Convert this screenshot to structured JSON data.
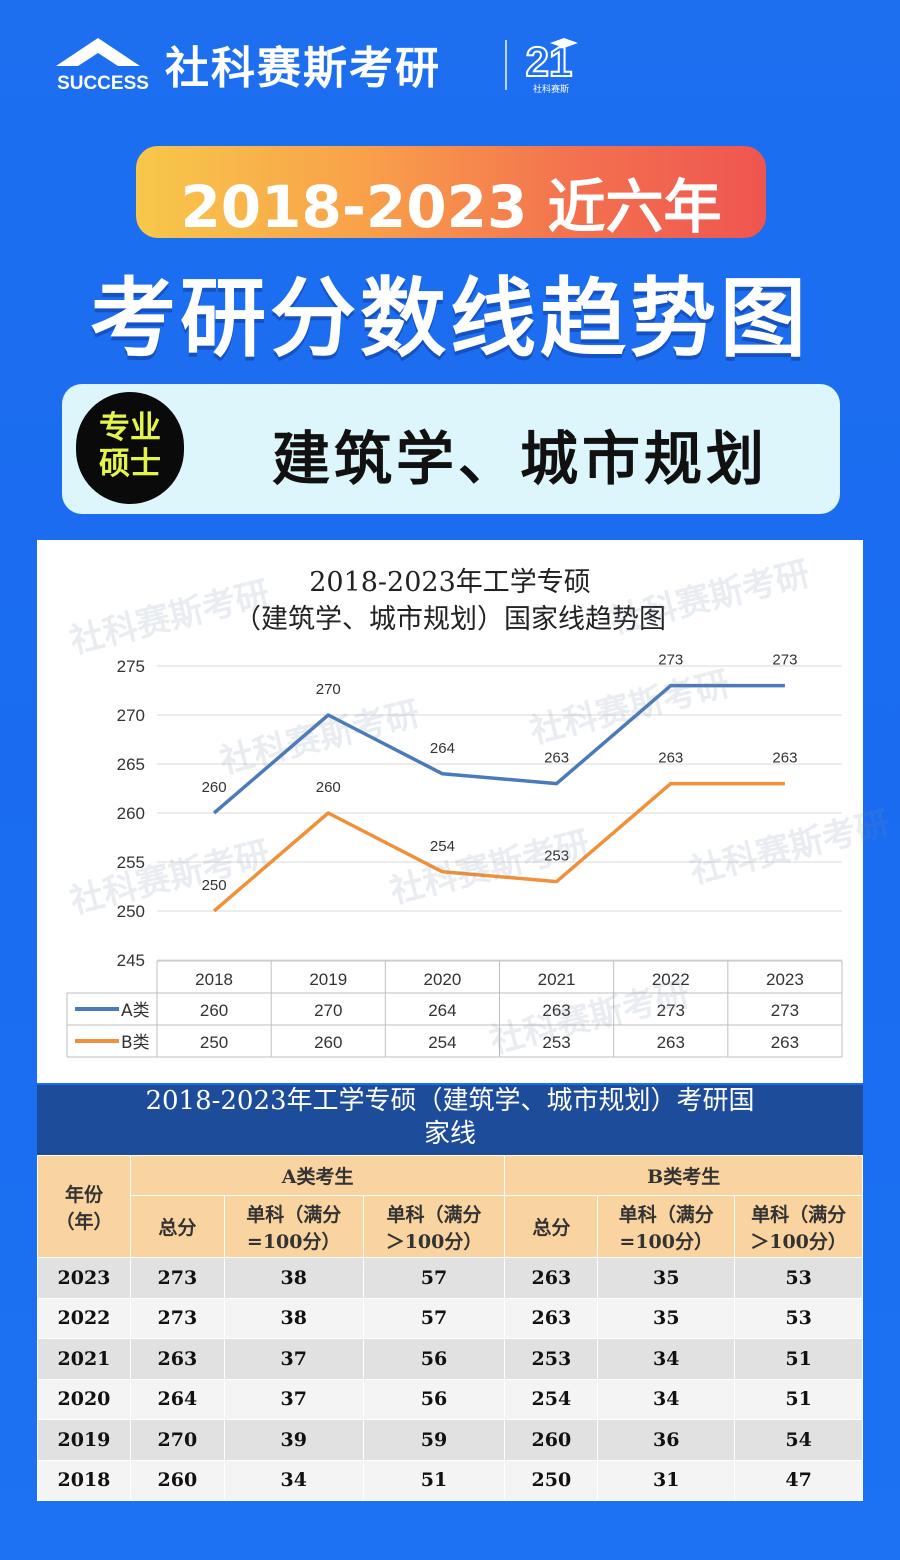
{
  "brand": {
    "logo_text": "SUCCESS",
    "name": "社科赛斯考研",
    "badge_number": "21",
    "badge_caption": "社科赛斯"
  },
  "banner": {
    "years": "2018-2023 近六年",
    "headline": "考研分数线趋势图",
    "tag_line1": "专业",
    "tag_line2": "硕士",
    "major": "建筑学、城市规划"
  },
  "watermark": "社科赛斯考研",
  "chart_data": {
    "type": "line",
    "title_line1": "2018-2023年工学专硕",
    "title_line2": "（建筑学、城市规划）国家线趋势图",
    "categories": [
      "2018",
      "2019",
      "2020",
      "2021",
      "2022",
      "2023"
    ],
    "ylim": [
      245,
      275
    ],
    "yticks": [
      245,
      250,
      255,
      260,
      265,
      270,
      275
    ],
    "grid": true,
    "series": [
      {
        "name": "A类",
        "color": "#4a7ab8",
        "values": [
          260,
          270,
          264,
          263,
          273,
          273
        ]
      },
      {
        "name": "B类",
        "color": "#f0913a",
        "values": [
          250,
          260,
          254,
          253,
          263,
          263
        ]
      }
    ]
  },
  "table": {
    "title_line1": "2018-2023年工学专硕（建筑学、城市规划）考研国",
    "title_line2": "家线",
    "year_header_line1": "年份",
    "year_header_line2": "（年）",
    "group_a": "A类考生",
    "group_b": "B类考生",
    "col_total": "总分",
    "col_single_100_line1": "单科（满分",
    "col_single_100_line2": "=100分）",
    "col_single_over_line1": "单科（满分",
    "col_single_over_line2": "＞100分）",
    "rows": [
      {
        "year": "2023",
        "a_total": "273",
        "a_s100": "38",
        "a_sgt": "57",
        "b_total": "263",
        "b_s100": "35",
        "b_sgt": "53"
      },
      {
        "year": "2022",
        "a_total": "273",
        "a_s100": "38",
        "a_sgt": "57",
        "b_total": "263",
        "b_s100": "35",
        "b_sgt": "53"
      },
      {
        "year": "2021",
        "a_total": "263",
        "a_s100": "37",
        "a_sgt": "56",
        "b_total": "253",
        "b_s100": "34",
        "b_sgt": "51"
      },
      {
        "year": "2020",
        "a_total": "264",
        "a_s100": "37",
        "a_sgt": "56",
        "b_total": "254",
        "b_s100": "34",
        "b_sgt": "51"
      },
      {
        "year": "2019",
        "a_total": "270",
        "a_s100": "39",
        "a_sgt": "59",
        "b_total": "260",
        "b_s100": "36",
        "b_sgt": "54"
      },
      {
        "year": "2018",
        "a_total": "260",
        "a_s100": "34",
        "a_sgt": "51",
        "b_total": "250",
        "b_s100": "31",
        "b_sgt": "47"
      }
    ]
  }
}
